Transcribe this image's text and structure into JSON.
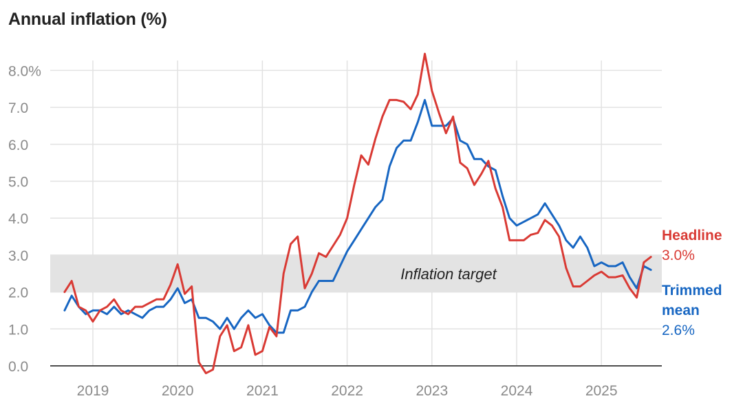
{
  "title": "Annual inflation (%)",
  "chart_data": {
    "type": "line",
    "title": "Annual inflation (%)",
    "xlabel": "",
    "ylabel": "",
    "x_tick_labels": [
      "2019",
      "2020",
      "2021",
      "2022",
      "2023",
      "2024",
      "2025"
    ],
    "y_tick_labels": [
      "0.0",
      "1.0",
      "2.0",
      "3.0",
      "4.0",
      "5.0",
      "6.0",
      "7.0",
      "8.0%"
    ],
    "y_ticks": [
      0,
      1,
      2,
      3,
      4,
      5,
      6,
      7,
      8
    ],
    "ylim": [
      0,
      8.5
    ],
    "xlim": [
      "2018-07",
      "2025-09"
    ],
    "grid": true,
    "target_band": {
      "label": "Inflation target",
      "low": 2.0,
      "high": 3.0,
      "color": "#e3e3e3"
    },
    "series": [
      {
        "name": "Headline",
        "end_label": "3.0%",
        "color": "#d93a34",
        "x": [
          "2018-09",
          "2018-10",
          "2018-11",
          "2018-12",
          "2019-01",
          "2019-02",
          "2019-03",
          "2019-04",
          "2019-05",
          "2019-06",
          "2019-07",
          "2019-08",
          "2019-09",
          "2019-10",
          "2019-11",
          "2019-12",
          "2020-01",
          "2020-02",
          "2020-03",
          "2020-04",
          "2020-05",
          "2020-06",
          "2020-07",
          "2020-08",
          "2020-09",
          "2020-10",
          "2020-11",
          "2020-12",
          "2021-01",
          "2021-02",
          "2021-03",
          "2021-04",
          "2021-05",
          "2021-06",
          "2021-07",
          "2021-08",
          "2021-09",
          "2021-10",
          "2021-11",
          "2021-12",
          "2022-01",
          "2022-02",
          "2022-03",
          "2022-04",
          "2022-05",
          "2022-06",
          "2022-07",
          "2022-08",
          "2022-09",
          "2022-10",
          "2022-11",
          "2022-12",
          "2023-01",
          "2023-02",
          "2023-03",
          "2023-04",
          "2023-05",
          "2023-06",
          "2023-07",
          "2023-08",
          "2023-09",
          "2023-10",
          "2023-11",
          "2023-12",
          "2024-01",
          "2024-02",
          "2024-03",
          "2024-04",
          "2024-05",
          "2024-06",
          "2024-07",
          "2024-08",
          "2024-09",
          "2024-10",
          "2024-11",
          "2024-12",
          "2025-01",
          "2025-02",
          "2025-03",
          "2025-04",
          "2025-05",
          "2025-06",
          "2025-07",
          "2025-08"
        ],
        "values": [
          2.0,
          2.3,
          1.6,
          1.5,
          1.2,
          1.5,
          1.6,
          1.8,
          1.5,
          1.4,
          1.6,
          1.6,
          1.7,
          1.8,
          1.8,
          2.2,
          2.75,
          1.95,
          2.15,
          0.1,
          -0.2,
          -0.1,
          0.8,
          1.1,
          0.4,
          0.5,
          1.1,
          0.3,
          0.4,
          1.05,
          0.8,
          2.5,
          3.3,
          3.5,
          2.1,
          2.5,
          3.05,
          2.95,
          3.25,
          3.55,
          4.0,
          4.9,
          5.7,
          5.45,
          6.15,
          6.75,
          7.2,
          7.2,
          7.15,
          6.95,
          7.35,
          8.45,
          7.45,
          6.85,
          6.3,
          6.75,
          5.5,
          5.35,
          4.9,
          5.2,
          5.55,
          4.8,
          4.3,
          3.4,
          3.4,
          3.4,
          3.55,
          3.6,
          3.95,
          3.8,
          3.5,
          2.65,
          2.15,
          2.15,
          2.3,
          2.45,
          2.55,
          2.4,
          2.4,
          2.45,
          2.1,
          1.85,
          2.8,
          2.95
        ]
      },
      {
        "name": "Trimmed mean",
        "end_label": "2.6%",
        "color": "#1766c2",
        "x": [
          "2018-09",
          "2018-10",
          "2018-11",
          "2018-12",
          "2019-01",
          "2019-02",
          "2019-03",
          "2019-04",
          "2019-05",
          "2019-06",
          "2019-07",
          "2019-08",
          "2019-09",
          "2019-10",
          "2019-11",
          "2019-12",
          "2020-01",
          "2020-02",
          "2020-03",
          "2020-04",
          "2020-05",
          "2020-06",
          "2020-07",
          "2020-08",
          "2020-09",
          "2020-10",
          "2020-11",
          "2020-12",
          "2021-01",
          "2021-02",
          "2021-03",
          "2021-04",
          "2021-05",
          "2021-06",
          "2021-07",
          "2021-08",
          "2021-09",
          "2021-10",
          "2021-11",
          "2021-12",
          "2022-01",
          "2022-02",
          "2022-03",
          "2022-04",
          "2022-05",
          "2022-06",
          "2022-07",
          "2022-08",
          "2022-09",
          "2022-10",
          "2022-11",
          "2022-12",
          "2023-01",
          "2023-02",
          "2023-03",
          "2023-04",
          "2023-05",
          "2023-06",
          "2023-07",
          "2023-08",
          "2023-09",
          "2023-10",
          "2023-11",
          "2023-12",
          "2024-01",
          "2024-02",
          "2024-03",
          "2024-04",
          "2024-05",
          "2024-06",
          "2024-07",
          "2024-08",
          "2024-09",
          "2024-10",
          "2024-11",
          "2024-12",
          "2025-01",
          "2025-02",
          "2025-03",
          "2025-04",
          "2025-05",
          "2025-06",
          "2025-07",
          "2025-08"
        ],
        "values": [
          1.5,
          1.9,
          1.6,
          1.4,
          1.5,
          1.5,
          1.4,
          1.6,
          1.4,
          1.5,
          1.4,
          1.3,
          1.5,
          1.6,
          1.6,
          1.8,
          2.1,
          1.7,
          1.8,
          1.3,
          1.3,
          1.2,
          1.0,
          1.3,
          1.0,
          1.3,
          1.5,
          1.3,
          1.4,
          1.1,
          0.9,
          0.9,
          1.5,
          1.5,
          1.6,
          2.0,
          2.3,
          2.3,
          2.3,
          2.7,
          3.1,
          3.4,
          3.7,
          4.0,
          4.3,
          4.5,
          5.4,
          5.9,
          6.1,
          6.1,
          6.6,
          7.2,
          6.5,
          6.5,
          6.5,
          6.7,
          6.1,
          6.0,
          5.6,
          5.6,
          5.4,
          5.3,
          4.6,
          4.0,
          3.8,
          3.9,
          4.0,
          4.1,
          4.4,
          4.1,
          3.8,
          3.4,
          3.2,
          3.5,
          3.2,
          2.7,
          2.8,
          2.7,
          2.7,
          2.8,
          2.4,
          2.1,
          2.7,
          2.6
        ]
      }
    ]
  }
}
